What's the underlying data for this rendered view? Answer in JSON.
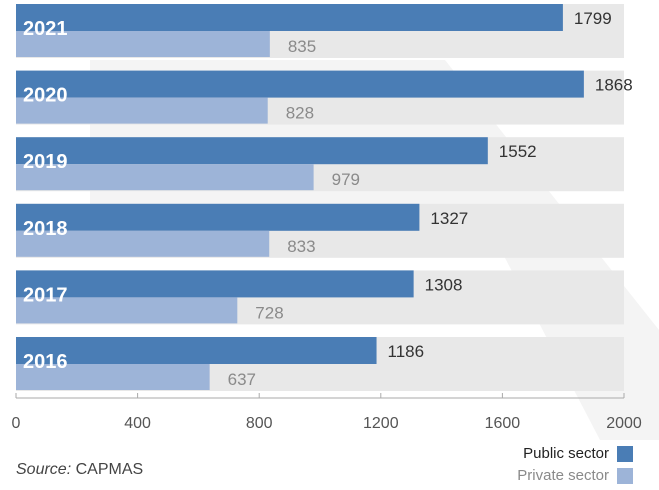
{
  "chart_data": {
    "type": "bar",
    "orientation": "horizontal",
    "categories": [
      "2021",
      "2020",
      "2019",
      "2018",
      "2017",
      "2016"
    ],
    "series": [
      {
        "name": "Public sector",
        "values": [
          1799,
          1868,
          1552,
          1327,
          1308,
          1186
        ],
        "color": "#4a7db5"
      },
      {
        "name": "Private sector",
        "values": [
          835,
          828,
          979,
          833,
          728,
          637
        ],
        "color": "#9db4d8"
      }
    ],
    "xlim": [
      0,
      2000
    ],
    "xticks": [
      "0",
      "400",
      "800",
      "1200",
      "1600",
      "2000"
    ],
    "legend_position": "bottom-right",
    "source_label": "Source:",
    "source_value": "CAPMAS"
  },
  "colors": {
    "public": "#4a7db5",
    "private": "#9db4d8",
    "track": "#e8e8e8",
    "watermark": "#f4f4f4"
  }
}
